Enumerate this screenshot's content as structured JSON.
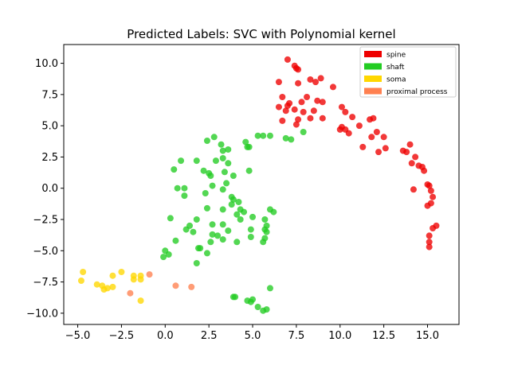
{
  "chart_data": {
    "type": "scatter",
    "title": "Predicted Labels: SVC with Polynomial kernel",
    "xlabel": "",
    "ylabel": "",
    "xlim": [
      -5.8,
      16.8
    ],
    "ylim": [
      -10.9,
      11.5
    ],
    "xticks": [
      -5.0,
      -2.5,
      0.0,
      2.5,
      5.0,
      7.5,
      10.0,
      12.5,
      15.0
    ],
    "xtick_labels": [
      "−5.0",
      "−2.5",
      "0.0",
      "2.5",
      "5.0",
      "7.5",
      "10.0",
      "12.5",
      "15.0"
    ],
    "yticks": [
      -10.0,
      -7.5,
      -5.0,
      -2.5,
      0.0,
      2.5,
      5.0,
      7.5,
      10.0
    ],
    "ytick_labels": [
      "−10.0",
      "−7.5",
      "−5.0",
      "−2.5",
      "0.0",
      "2.5",
      "5.0",
      "7.5",
      "10.0"
    ],
    "grid": false,
    "legend_position": "top-right",
    "series": [
      {
        "name": "spine",
        "color": "#ee0000",
        "points": [
          [
            7.0,
            10.3
          ],
          [
            7.4,
            9.8
          ],
          [
            7.5,
            9.6
          ],
          [
            7.6,
            9.5
          ],
          [
            6.5,
            8.5
          ],
          [
            7.6,
            8.4
          ],
          [
            8.3,
            8.7
          ],
          [
            8.6,
            8.5
          ],
          [
            8.9,
            8.8
          ],
          [
            9.6,
            8.1
          ],
          [
            6.7,
            7.3
          ],
          [
            6.5,
            6.5
          ],
          [
            7.0,
            6.6
          ],
          [
            7.1,
            6.8
          ],
          [
            6.9,
            6.2
          ],
          [
            7.4,
            6.3
          ],
          [
            7.8,
            6.9
          ],
          [
            8.1,
            7.3
          ],
          [
            8.7,
            7.0
          ],
          [
            9.0,
            6.9
          ],
          [
            7.9,
            6.1
          ],
          [
            8.5,
            6.2
          ],
          [
            9.0,
            5.6
          ],
          [
            7.6,
            5.5
          ],
          [
            6.7,
            5.4
          ],
          [
            7.5,
            5.1
          ],
          [
            8.3,
            5.6
          ],
          [
            10.1,
            6.5
          ],
          [
            10.3,
            6.1
          ],
          [
            10.7,
            5.7
          ],
          [
            10.1,
            4.9
          ],
          [
            10.3,
            4.7
          ],
          [
            10.0,
            4.7
          ],
          [
            10.5,
            4.4
          ],
          [
            11.1,
            5.0
          ],
          [
            11.7,
            5.5
          ],
          [
            11.9,
            5.6
          ],
          [
            12.1,
            4.5
          ],
          [
            12.5,
            4.1
          ],
          [
            11.8,
            4.1
          ],
          [
            12.6,
            3.2
          ],
          [
            12.2,
            2.9
          ],
          [
            11.3,
            3.3
          ],
          [
            13.6,
            3.0
          ],
          [
            13.8,
            2.9
          ],
          [
            14.0,
            3.5
          ],
          [
            14.3,
            2.5
          ],
          [
            14.1,
            2.0
          ],
          [
            14.5,
            1.8
          ],
          [
            14.7,
            1.7
          ],
          [
            14.8,
            1.4
          ],
          [
            14.2,
            -0.1
          ],
          [
            15.0,
            0.3
          ],
          [
            15.1,
            0.2
          ],
          [
            15.2,
            -0.2
          ],
          [
            15.3,
            -0.7
          ],
          [
            15.0,
            -1.4
          ],
          [
            15.2,
            -1.2
          ],
          [
            15.5,
            -3.0
          ],
          [
            15.3,
            -3.2
          ],
          [
            15.1,
            -3.8
          ],
          [
            15.1,
            -4.3
          ],
          [
            15.1,
            -4.7
          ]
        ]
      },
      {
        "name": "shaft",
        "color": "#22cc22",
        "points": [
          [
            6.9,
            4.0
          ],
          [
            7.2,
            3.9
          ],
          [
            7.9,
            4.5
          ],
          [
            5.3,
            4.2
          ],
          [
            5.6,
            4.2
          ],
          [
            6.0,
            4.2
          ],
          [
            4.6,
            3.7
          ],
          [
            4.7,
            3.3
          ],
          [
            4.8,
            3.3
          ],
          [
            2.8,
            4.1
          ],
          [
            2.4,
            3.8
          ],
          [
            3.2,
            3.5
          ],
          [
            3.6,
            3.1
          ],
          [
            3.3,
            3.0
          ],
          [
            1.8,
            2.2
          ],
          [
            0.9,
            2.2
          ],
          [
            2.9,
            2.2
          ],
          [
            3.3,
            2.4
          ],
          [
            3.6,
            2.0
          ],
          [
            0.5,
            1.5
          ],
          [
            2.2,
            1.4
          ],
          [
            2.5,
            1.2
          ],
          [
            2.6,
            1.0
          ],
          [
            3.4,
            1.3
          ],
          [
            3.9,
            1.0
          ],
          [
            4.8,
            1.4
          ],
          [
            0.7,
            0.0
          ],
          [
            1.1,
            0.0
          ],
          [
            2.7,
            0.2
          ],
          [
            3.3,
            -0.1
          ],
          [
            3.5,
            0.4
          ],
          [
            1.1,
            -0.6
          ],
          [
            2.3,
            -0.4
          ],
          [
            3.8,
            -0.7
          ],
          [
            3.9,
            -0.9
          ],
          [
            3.8,
            -1.3
          ],
          [
            4.2,
            -1.1
          ],
          [
            4.3,
            -1.7
          ],
          [
            4.5,
            -1.9
          ],
          [
            2.4,
            -1.6
          ],
          [
            3.3,
            -1.7
          ],
          [
            4.1,
            -2.1
          ],
          [
            4.3,
            -2.5
          ],
          [
            5.0,
            -2.3
          ],
          [
            6.0,
            -1.7
          ],
          [
            6.2,
            -1.9
          ],
          [
            0.3,
            -2.4
          ],
          [
            1.8,
            -2.5
          ],
          [
            2.7,
            -2.9
          ],
          [
            3.3,
            -2.9
          ],
          [
            5.7,
            -2.5
          ],
          [
            5.8,
            -3.0
          ],
          [
            5.7,
            -3.3
          ],
          [
            5.8,
            -3.5
          ],
          [
            1.2,
            -3.3
          ],
          [
            1.6,
            -3.5
          ],
          [
            1.4,
            -3.0
          ],
          [
            2.7,
            -3.7
          ],
          [
            3.0,
            -3.8
          ],
          [
            3.6,
            -3.4
          ],
          [
            4.9,
            -3.3
          ],
          [
            4.9,
            -3.9
          ],
          [
            2.6,
            -4.3
          ],
          [
            3.3,
            -4.1
          ],
          [
            4.1,
            -4.3
          ],
          [
            5.6,
            -4.3
          ],
          [
            5.7,
            -4.0
          ],
          [
            0.6,
            -4.2
          ],
          [
            1.9,
            -4.8
          ],
          [
            2.0,
            -4.8
          ],
          [
            2.4,
            -5.2
          ],
          [
            -0.1,
            -5.5
          ],
          [
            0.0,
            -5.0
          ],
          [
            0.2,
            -5.3
          ],
          [
            1.8,
            -6.0
          ],
          [
            6.0,
            -8.0
          ],
          [
            3.9,
            -8.7
          ],
          [
            4.0,
            -8.7
          ],
          [
            4.7,
            -9.0
          ],
          [
            5.0,
            -8.9
          ],
          [
            4.9,
            -9.1
          ],
          [
            5.3,
            -9.5
          ],
          [
            5.6,
            -9.8
          ],
          [
            5.8,
            -9.7
          ]
        ]
      },
      {
        "name": "soma",
        "color": "#ffd700",
        "points": [
          [
            -4.7,
            -6.7
          ],
          [
            -4.8,
            -7.4
          ],
          [
            -3.9,
            -7.7
          ],
          [
            -3.6,
            -7.8
          ],
          [
            -3.5,
            -8.1
          ],
          [
            -3.3,
            -8.0
          ],
          [
            -3.0,
            -7.9
          ],
          [
            -3.0,
            -7.0
          ],
          [
            -2.5,
            -6.7
          ],
          [
            -1.8,
            -7.0
          ],
          [
            -1.8,
            -7.3
          ],
          [
            -1.4,
            -7.0
          ],
          [
            -1.4,
            -7.3
          ],
          [
            -1.4,
            -9.0
          ]
        ]
      },
      {
        "name": "proximal process",
        "color": "#ff8050",
        "points": [
          [
            -0.9,
            -6.9
          ],
          [
            -2.0,
            -8.4
          ],
          [
            0.6,
            -7.8
          ],
          [
            1.5,
            -7.9
          ]
        ]
      }
    ]
  }
}
